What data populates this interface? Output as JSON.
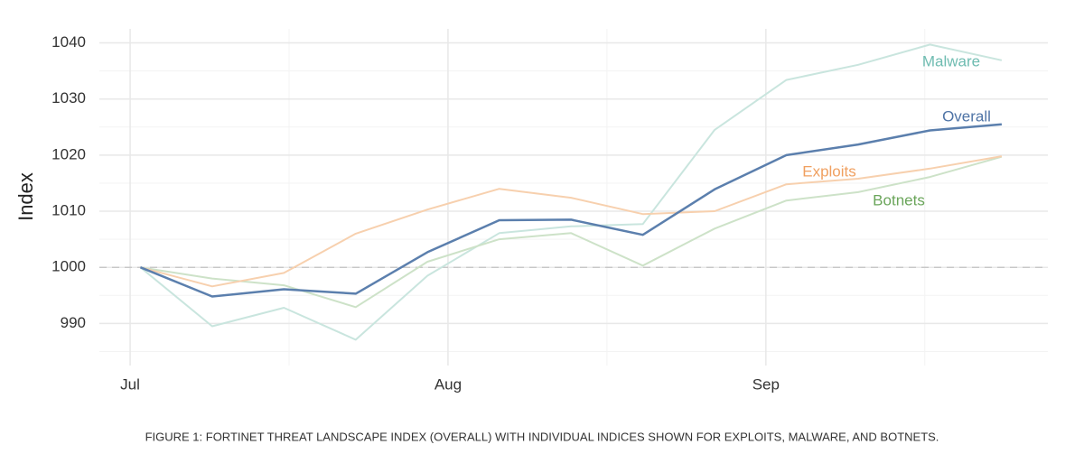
{
  "chart_data": {
    "type": "line",
    "y_label": "Index",
    "caption": "FIGURE 1: FORTINET THREAT LANDSCAPE INDEX (OVERALL) WITH INDIVIDUAL INDICES SHOWN FOR EXPLOITS, MALWARE, AND BOTNETS.",
    "x": [
      1,
      8,
      15,
      22,
      29,
      36,
      43,
      50,
      57,
      64,
      71,
      78,
      85
    ],
    "xlim": [
      -3,
      89.5
    ],
    "xticks": [
      {
        "value": 0,
        "label": "Jul"
      },
      {
        "value": 31,
        "label": "Aug"
      },
      {
        "value": 62,
        "label": "Sep"
      }
    ],
    "xminor": [
      15.5,
      46.5,
      77.5
    ],
    "ylim": [
      982.5,
      1042.5
    ],
    "yticks": [
      990,
      1000,
      1010,
      1020,
      1030,
      1040
    ],
    "yminor": [
      985,
      995,
      1005,
      1015,
      1025,
      1035
    ],
    "reference_line": 1000,
    "grid": true,
    "series": [
      {
        "name": "Malware",
        "color": "#c9e5de",
        "label_color": "#6fbcb1",
        "values": [
          1000,
          989.5,
          992.8,
          987.1,
          998.5,
          1006.1,
          1007.3,
          1007.7,
          1024.5,
          1033.4,
          1036.1,
          1039.7,
          1036.9
        ]
      },
      {
        "name": "Botnets",
        "color": "#cde2c8",
        "label_color": "#6aa55a",
        "values": [
          1000,
          998,
          996.8,
          992.9,
          1001,
          1005,
          1006.1,
          1000.3,
          1006.9,
          1011.9,
          1013.4,
          1016.1,
          1019.7
        ]
      },
      {
        "name": "Exploits",
        "color": "#f7d0ae",
        "label_color": "#f0a060",
        "values": [
          1000,
          996.6,
          999,
          1006,
          1010.3,
          1014,
          1012.4,
          1009.5,
          1010,
          1014.8,
          1015.8,
          1017.6,
          1019.8
        ]
      },
      {
        "name": "Overall",
        "color": "#5b7fad",
        "label_color": "#4f74a6",
        "values": [
          1000,
          994.8,
          996.1,
          995.3,
          1002.7,
          1008.4,
          1008.5,
          1005.8,
          1013.9,
          1020,
          1021.9,
          1024.4,
          1025.5
        ]
      }
    ]
  }
}
